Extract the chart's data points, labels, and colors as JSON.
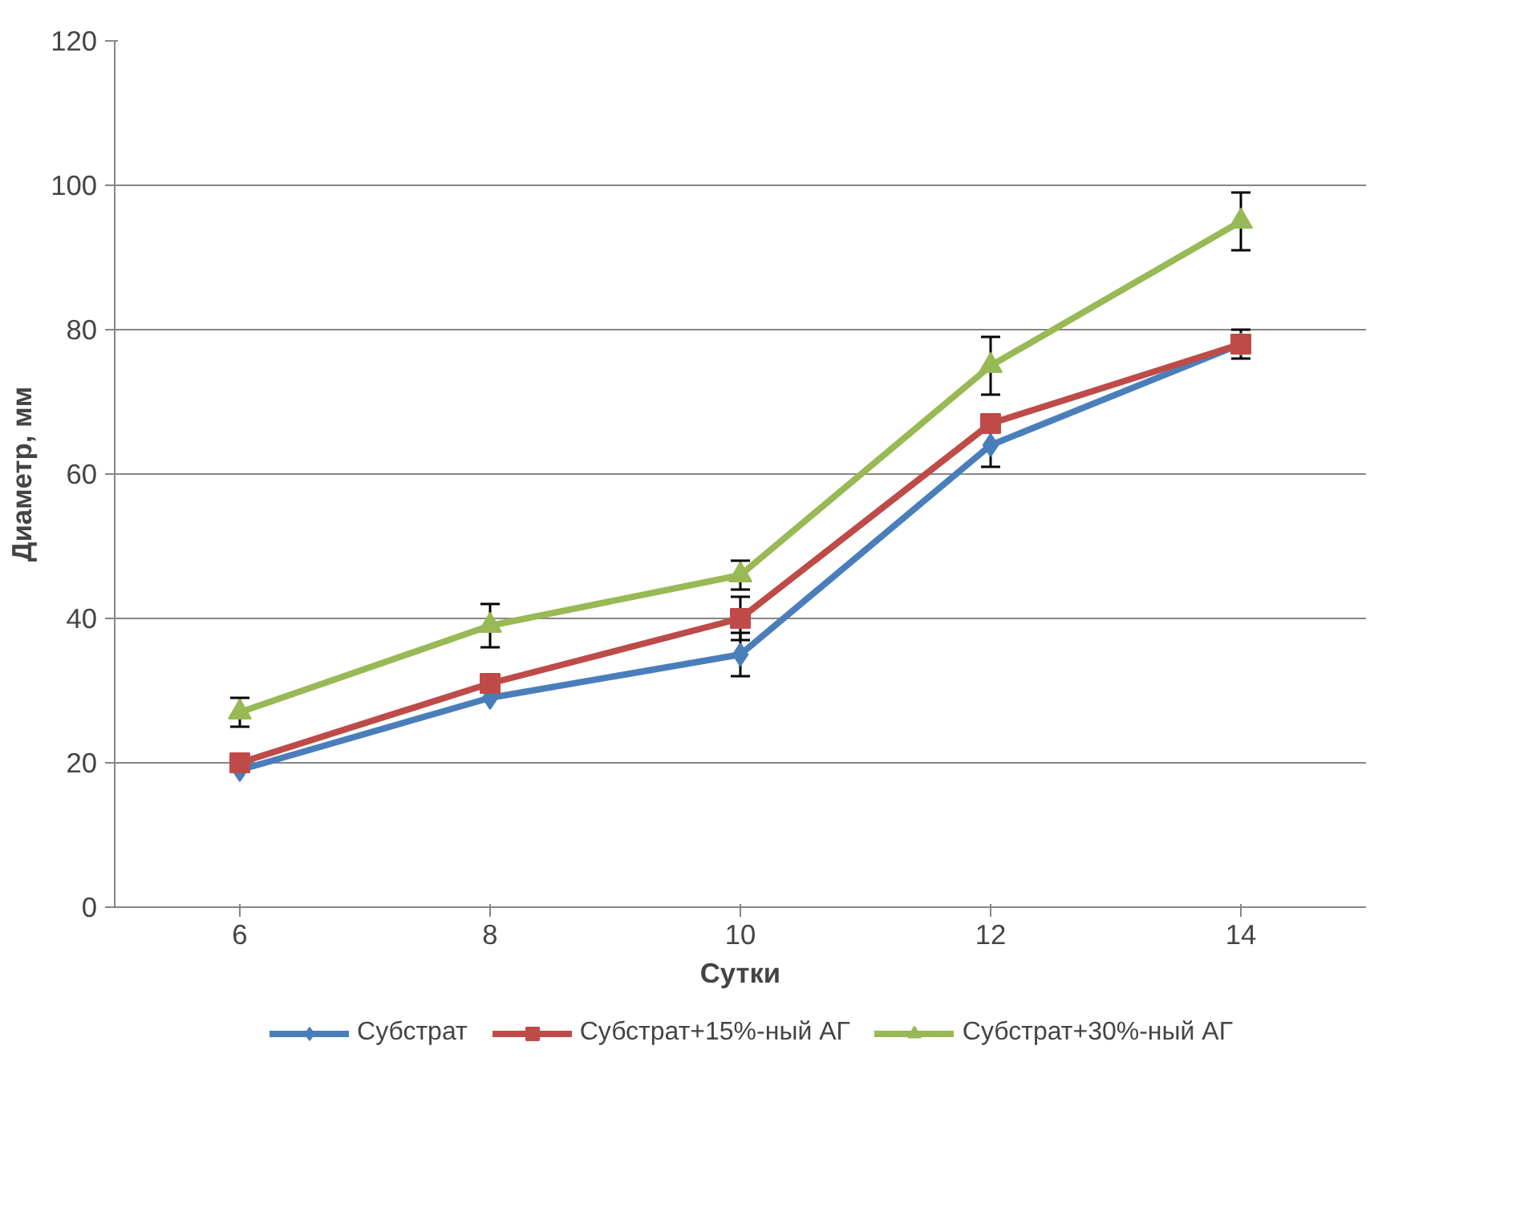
{
  "chart_data": {
    "type": "line",
    "xlabel": "Сутки",
    "ylabel": "Диаметр, мм",
    "x": [
      6,
      8,
      10,
      12,
      14
    ],
    "xlim": [
      5,
      15
    ],
    "xticks": [
      6,
      8,
      10,
      12,
      14
    ],
    "ylim": [
      0,
      120
    ],
    "yticks": [
      0,
      20,
      40,
      60,
      80,
      100,
      120
    ],
    "grid": "y",
    "legend": "bottom",
    "series": [
      {
        "name": "Субстрат",
        "color": "#4a7ebb",
        "marker": "diamond",
        "values": [
          19,
          29,
          35,
          64,
          78
        ],
        "errors": [
          null,
          null,
          3,
          3,
          null
        ]
      },
      {
        "name": "Субстрат+15%-ный АГ",
        "color": "#be4b48",
        "marker": "square",
        "values": [
          20,
          31,
          40,
          67,
          78
        ],
        "errors": [
          null,
          null,
          3,
          null,
          2
        ]
      },
      {
        "name": "Субстрат+30%-ный АГ",
        "color": "#98b954",
        "marker": "triangle",
        "values": [
          27,
          39,
          46,
          75,
          95
        ],
        "errors": [
          2,
          3,
          2,
          4,
          4
        ]
      }
    ]
  }
}
